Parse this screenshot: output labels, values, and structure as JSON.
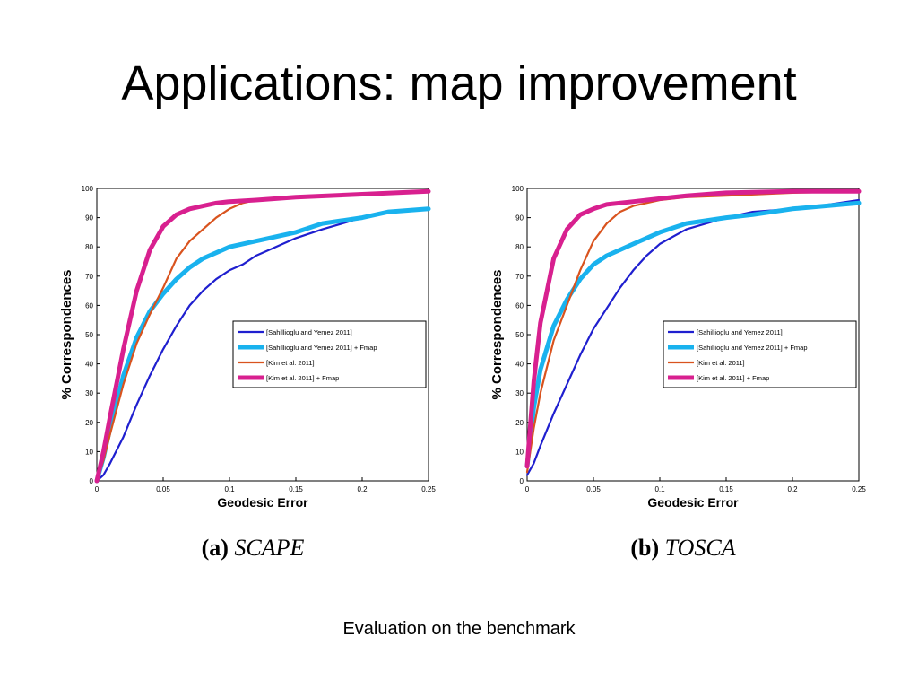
{
  "slide": {
    "title": "Applications: map improvement",
    "footer": "Evaluation on the benchmark"
  },
  "chart_data": [
    {
      "type": "line",
      "caption_id": "(a)",
      "caption_name": "SCAPE",
      "xlabel": "Geodesic Error",
      "ylabel": "% Correspondences",
      "xlim": [
        0,
        0.25
      ],
      "ylim": [
        0,
        100
      ],
      "xticks": [
        "0",
        "0.05",
        "0.1",
        "0.15",
        "0.2",
        "0.25"
      ],
      "yticks": [
        "0",
        "10",
        "20",
        "30",
        "40",
        "50",
        "60",
        "70",
        "80",
        "90",
        "100"
      ],
      "legend_position": "center-right",
      "series": [
        {
          "name": "[Sahillioglu and Yemez 2011]",
          "color": "#1f1fcf",
          "width": 2.2,
          "x": [
            0,
            0.005,
            0.01,
            0.02,
            0.03,
            0.04,
            0.05,
            0.06,
            0.07,
            0.08,
            0.09,
            0.1,
            0.11,
            0.12,
            0.13,
            0.15,
            0.17,
            0.2,
            0.22,
            0.25
          ],
          "y": [
            0,
            2,
            6,
            15,
            26,
            36,
            45,
            53,
            60,
            65,
            69,
            72,
            74,
            77,
            79,
            83,
            86,
            90,
            92,
            93
          ]
        },
        {
          "name": "[Sahillioglu and Yemez 2011] + Fmap",
          "color": "#19b2ee",
          "width": 5,
          "x": [
            0,
            0.005,
            0.01,
            0.02,
            0.03,
            0.04,
            0.05,
            0.06,
            0.07,
            0.08,
            0.09,
            0.1,
            0.12,
            0.15,
            0.17,
            0.2,
            0.22,
            0.25
          ],
          "y": [
            0,
            8,
            18,
            36,
            49,
            58,
            64,
            69,
            73,
            76,
            78,
            80,
            82,
            85,
            88,
            90,
            92,
            93
          ]
        },
        {
          "name": "[Kim et al. 2011]",
          "color": "#d9531e",
          "width": 2.2,
          "x": [
            0,
            0.005,
            0.01,
            0.02,
            0.03,
            0.04,
            0.05,
            0.06,
            0.07,
            0.08,
            0.09,
            0.1,
            0.11,
            0.12,
            0.15,
            0.2,
            0.25
          ],
          "y": [
            0,
            7,
            16,
            33,
            47,
            57,
            66,
            76,
            82,
            86,
            90,
            93,
            95,
            96,
            97,
            98,
            99
          ]
        },
        {
          "name": "[Kim et al. 2011] + Fmap",
          "color": "#d8208f",
          "width": 5,
          "x": [
            0,
            0.005,
            0.01,
            0.02,
            0.03,
            0.04,
            0.05,
            0.06,
            0.07,
            0.08,
            0.09,
            0.1,
            0.12,
            0.15,
            0.2,
            0.25
          ],
          "y": [
            0,
            10,
            22,
            45,
            65,
            79,
            87,
            91,
            93,
            94,
            95,
            95.5,
            96,
            97,
            98,
            99
          ]
        }
      ]
    },
    {
      "type": "line",
      "caption_id": "(b)",
      "caption_name": "TOSCA",
      "xlabel": "Geodesic Error",
      "ylabel": "% Correspondences",
      "xlim": [
        0,
        0.25
      ],
      "ylim": [
        0,
        100
      ],
      "xticks": [
        "0",
        "0.05",
        "0.1",
        "0.15",
        "0.2",
        "0.25"
      ],
      "yticks": [
        "0",
        "10",
        "20",
        "30",
        "40",
        "50",
        "60",
        "70",
        "80",
        "90",
        "100"
      ],
      "legend_position": "center-right",
      "series": [
        {
          "name": "[Sahillioglu and Yemez 2011]",
          "color": "#1f1fcf",
          "width": 2.2,
          "x": [
            0,
            0.005,
            0.01,
            0.02,
            0.03,
            0.04,
            0.05,
            0.06,
            0.07,
            0.08,
            0.09,
            0.1,
            0.12,
            0.15,
            0.17,
            0.2,
            0.22,
            0.25
          ],
          "y": [
            2,
            6,
            12,
            23,
            33,
            43,
            52,
            59,
            66,
            72,
            77,
            81,
            86,
            90,
            92,
            93,
            94,
            96
          ]
        },
        {
          "name": "[Sahillioglu and Yemez 2011] + Fmap",
          "color": "#19b2ee",
          "width": 5,
          "x": [
            0,
            0.005,
            0.01,
            0.02,
            0.03,
            0.04,
            0.05,
            0.06,
            0.07,
            0.08,
            0.09,
            0.1,
            0.12,
            0.15,
            0.17,
            0.2,
            0.25
          ],
          "y": [
            5,
            25,
            38,
            53,
            62,
            69,
            74,
            77,
            79,
            81,
            83,
            85,
            88,
            90,
            91,
            93,
            95
          ]
        },
        {
          "name": "[Kim et al. 2011]",
          "color": "#d9531e",
          "width": 2.2,
          "x": [
            0,
            0.005,
            0.01,
            0.02,
            0.03,
            0.04,
            0.05,
            0.06,
            0.07,
            0.08,
            0.09,
            0.1,
            0.12,
            0.15,
            0.2,
            0.25
          ],
          "y": [
            3,
            18,
            30,
            48,
            60,
            72,
            82,
            88,
            92,
            94,
            95,
            96,
            97,
            97.5,
            98.5,
            99
          ]
        },
        {
          "name": "[Kim et al. 2011] + Fmap",
          "color": "#d8208f",
          "width": 5,
          "x": [
            0,
            0.005,
            0.01,
            0.02,
            0.03,
            0.04,
            0.05,
            0.06,
            0.08,
            0.1,
            0.12,
            0.15,
            0.2,
            0.25
          ],
          "y": [
            5,
            34,
            54,
            76,
            86,
            91,
            93,
            94.5,
            95.5,
            96.5,
            97.5,
            98.5,
            99,
            99
          ]
        }
      ]
    }
  ]
}
